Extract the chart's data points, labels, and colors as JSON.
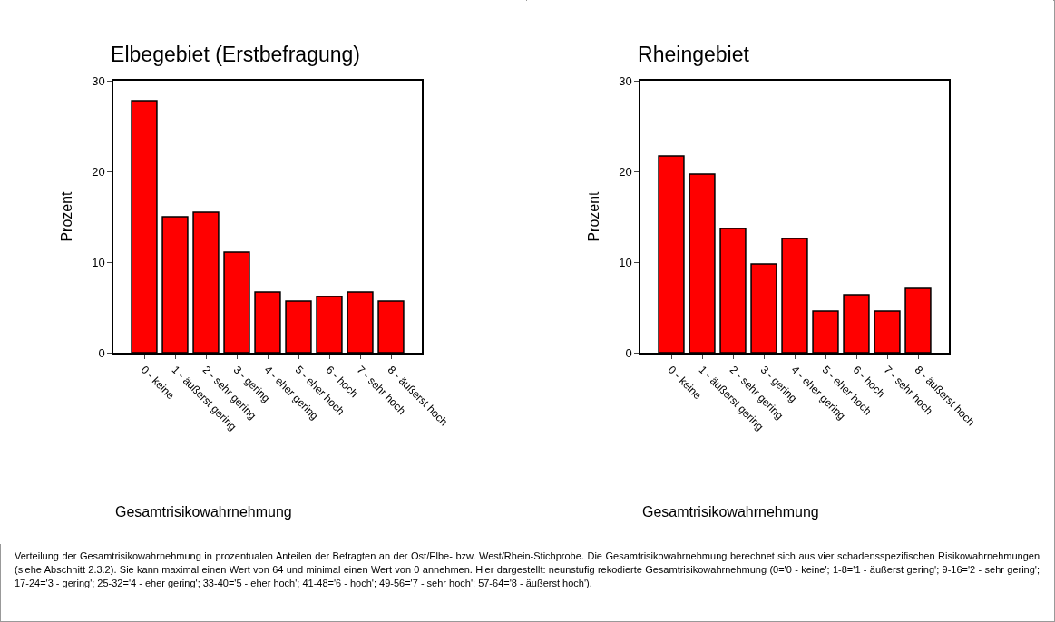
{
  "chart_data": [
    {
      "type": "bar",
      "title": "Elbegebiet (Erstbefragung)",
      "xlabel": "Gesamtrisikowahrnehmung",
      "ylabel": "Prozent",
      "categories": [
        "0 - keine",
        "1 - äußerst gering",
        "2 - sehr gering",
        "3 - gering",
        "4 - eher gering",
        "5 - eher hoch",
        "6 - hoch",
        "7 - sehr hoch",
        "8 - äußerst hoch"
      ],
      "series": [
        {
          "color": "#ff0000",
          "values": [
            27.8,
            15.0,
            15.5,
            11.1,
            6.7,
            5.7,
            6.2,
            6.7,
            5.7
          ]
        }
      ],
      "ylim": [
        0,
        30
      ],
      "yticks": [
        0,
        10,
        20,
        30
      ],
      "grid": false,
      "annotations": [
        "Verteilung der Gesamtrisikowahrnehmung in prozentualen Anteilen der Befragten an der Ost/Elbe- bzw. West/Rhein-Stichprobe. Die Gesamtrisikowahrnehmung berechnet sich aus vier schadensspezifischen Risikowahrnehmungen (siehe Abschnitt 2.3.2). Sie kann maximal einen Wert von 64 und minimal einen Wert von 0 annehmen. Hier dargestellt: neunstufig rekodierte Gesamtrisikowahrnehmung (0='0 - keine'; 1-8='1 - äußerst gering'; 9-16='2 - sehr gering'; 17-24='3 - gering'; 25-32='4 - eher gering'; 33-40='5 - eher hoch'; 41-48='6 - hoch'; 49-56='7 - sehr hoch'; 57-64='8 - äußerst hoch')."
      ]
    },
    {
      "type": "bar",
      "title": "Rheingebiet",
      "xlabel": "Gesamtrisikowahrnehmung",
      "ylabel": "Prozent",
      "categories": [
        "0 - keine",
        "1 - äußerst gering",
        "2 - sehr gering",
        "3 - gering",
        "4 - eher gering",
        "5 - eher hoch",
        "6 - hoch",
        "7 - sehr hoch",
        "8 - äußerst hoch"
      ],
      "series": [
        {
          "color": "#ff0000",
          "values": [
            21.7,
            19.7,
            13.7,
            9.8,
            12.6,
            4.6,
            6.4,
            4.6,
            7.1
          ]
        }
      ],
      "ylim": [
        0,
        30
      ],
      "yticks": [
        0,
        10,
        20,
        30
      ],
      "grid": false
    }
  ]
}
